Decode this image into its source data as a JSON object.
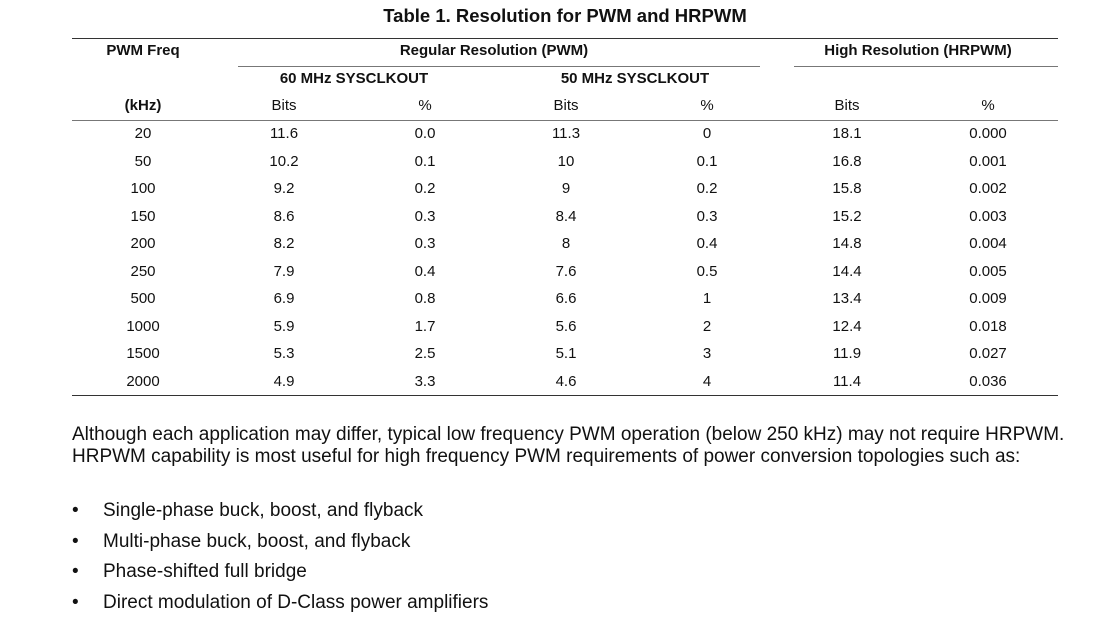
{
  "table": {
    "caption": "Table 1. Resolution for PWM and HRPWM",
    "header": {
      "pwm_freq": "PWM Freq",
      "regular": "Regular Resolution (PWM)",
      "high": "High Resolution (HRPWM)",
      "clk60": "60 MHz SYSCLKOUT",
      "clk50": "50 MHz SYSCLKOUT",
      "khz": "(kHz)",
      "bits_60": "Bits",
      "pct_60": "%",
      "bits_50": "Bits",
      "pct_50": "%",
      "bits_hr": "Bits",
      "pct_hr": "%"
    },
    "rows": [
      [
        "20",
        "11.6",
        "0.0",
        "11.3",
        "0",
        "18.1",
        "0.000"
      ],
      [
        "50",
        "10.2",
        "0.1",
        "10",
        "0.1",
        "16.8",
        "0.001"
      ],
      [
        "100",
        "9.2",
        "0.2",
        "9",
        "0.2",
        "15.8",
        "0.002"
      ],
      [
        "150",
        "8.6",
        "0.3",
        "8.4",
        "0.3",
        "15.2",
        "0.003"
      ],
      [
        "200",
        "8.2",
        "0.3",
        "8",
        "0.4",
        "14.8",
        "0.004"
      ],
      [
        "250",
        "7.9",
        "0.4",
        "7.6",
        "0.5",
        "14.4",
        "0.005"
      ],
      [
        "500",
        "6.9",
        "0.8",
        "6.6",
        "1",
        "13.4",
        "0.009"
      ],
      [
        "1000",
        "5.9",
        "1.7",
        "5.6",
        "2",
        "12.4",
        "0.018"
      ],
      [
        "1500",
        "5.3",
        "2.5",
        "5.1",
        "3",
        "11.9",
        "0.027"
      ],
      [
        "2000",
        "4.9",
        "3.3",
        "4.6",
        "4",
        "11.4",
        "0.036"
      ]
    ]
  },
  "body": {
    "paragraph": "Although each application may differ, typical low frequency PWM operation (below 250 kHz) may not require HRPWM. HRPWM capability is most useful for high frequency PWM requirements of power conversion topologies such as:",
    "bullet_symbol": "•",
    "bullets": [
      "Single-phase buck, boost, and flyback",
      "Multi-phase buck, boost, and flyback",
      "Phase-shifted full bridge",
      "Direct modulation of D-Class power amplifiers"
    ]
  }
}
